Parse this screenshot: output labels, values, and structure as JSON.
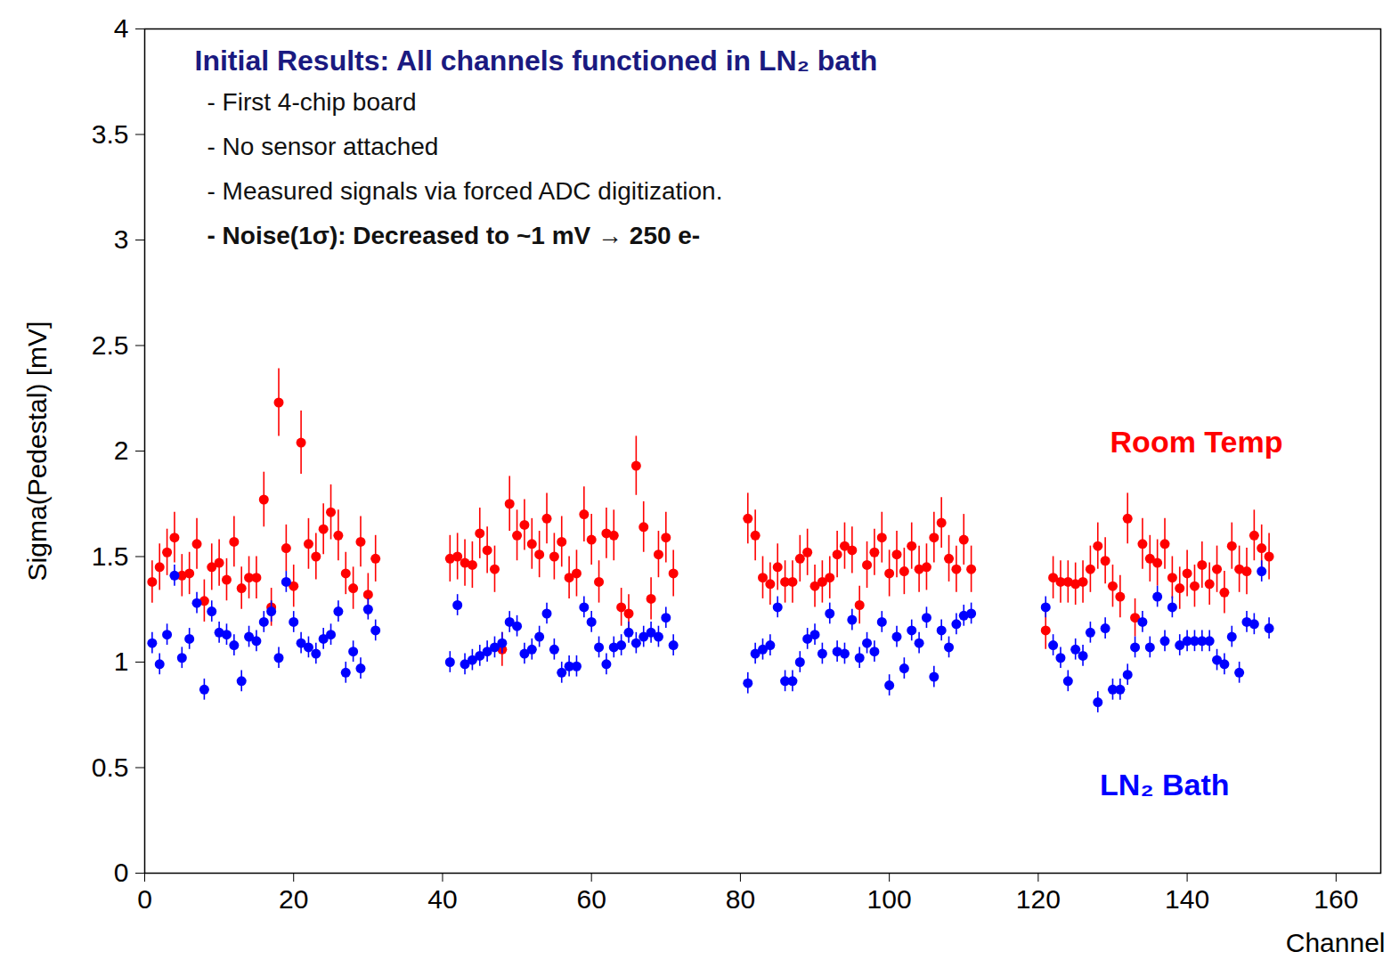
{
  "chart_data": {
    "type": "scatter",
    "x_label": "Channel",
    "y_label": "Sigma(Pedestal) [mV]",
    "xlim": [
      0,
      166
    ],
    "xticks": [
      0,
      20,
      40,
      60,
      80,
      100,
      120,
      140,
      160
    ],
    "ylim": [
      0,
      4
    ],
    "yticks": [
      0,
      0.5,
      1,
      1.5,
      2,
      2.5,
      3,
      3.5,
      4
    ],
    "grid": false,
    "legend": "right",
    "annotation": {
      "title": "Initial Results: All channels functioned in LN₂ bath",
      "lines": [
        "- First 4-chip board",
        "- No sensor attached",
        "- Measured signals via forced ADC digitization.",
        "- Noise(1σ): Decreased to ~1 mV → 250 e-"
      ]
    },
    "x": [
      1,
      2,
      3,
      4,
      5,
      6,
      7,
      8,
      9,
      10,
      11,
      12,
      13,
      14,
      15,
      16,
      17,
      18,
      19,
      20,
      21,
      22,
      23,
      24,
      25,
      26,
      27,
      28,
      29,
      30,
      31,
      41,
      42,
      43,
      44,
      45,
      46,
      47,
      48,
      49,
      50,
      51,
      52,
      53,
      54,
      55,
      56,
      57,
      58,
      59,
      60,
      61,
      62,
      63,
      64,
      65,
      66,
      67,
      68,
      69,
      70,
      71,
      81,
      82,
      83,
      84,
      85,
      86,
      87,
      88,
      89,
      90,
      91,
      92,
      93,
      94,
      95,
      96,
      97,
      98,
      99,
      100,
      101,
      102,
      103,
      104,
      105,
      106,
      107,
      108,
      109,
      110,
      111,
      121,
      122,
      123,
      124,
      125,
      126,
      127,
      128,
      129,
      130,
      131,
      132,
      133,
      134,
      135,
      136,
      137,
      138,
      139,
      140,
      141,
      142,
      143,
      144,
      145,
      146,
      147,
      148,
      149,
      150,
      151
    ],
    "series": [
      {
        "name": "Room Temp",
        "color": "#ff0000",
        "marker": "circle",
        "values": [
          1.38,
          1.45,
          1.52,
          1.59,
          1.41,
          1.42,
          1.56,
          1.29,
          1.45,
          1.47,
          1.39,
          1.57,
          1.35,
          1.4,
          1.4,
          1.77,
          1.26,
          2.23,
          1.54,
          1.36,
          2.04,
          1.56,
          1.5,
          1.63,
          1.71,
          1.6,
          1.42,
          1.35,
          1.57,
          1.32,
          1.49,
          1.49,
          1.5,
          1.47,
          1.46,
          1.61,
          1.53,
          1.44,
          1.06,
          1.75,
          1.6,
          1.65,
          1.56,
          1.51,
          1.68,
          1.5,
          1.57,
          1.4,
          1.42,
          1.7,
          1.58,
          1.38,
          1.61,
          1.6,
          1.26,
          1.23,
          1.93,
          1.64,
          1.3,
          1.51,
          1.59,
          1.42,
          1.68,
          1.6,
          1.4,
          1.37,
          1.45,
          1.38,
          1.38,
          1.49,
          1.52,
          1.36,
          1.38,
          1.4,
          1.51,
          1.55,
          1.53,
          1.27,
          1.46,
          1.52,
          1.59,
          1.42,
          1.51,
          1.43,
          1.55,
          1.44,
          1.45,
          1.59,
          1.66,
          1.49,
          1.44,
          1.58,
          1.44,
          1.15,
          1.4,
          1.38,
          1.38,
          1.37,
          1.38,
          1.44,
          1.55,
          1.48,
          1.36,
          1.31,
          1.68,
          1.21,
          1.56,
          1.49,
          1.47,
          1.56,
          1.4,
          1.35,
          1.42,
          1.36,
          1.46,
          1.37,
          1.44,
          1.33,
          1.55,
          1.44,
          1.43,
          1.6,
          1.54,
          1.5
        ],
        "errors": [
          0.1,
          0.11,
          0.11,
          0.12,
          0.1,
          0.1,
          0.12,
          0.1,
          0.11,
          0.11,
          0.1,
          0.12,
          0.1,
          0.1,
          0.1,
          0.13,
          0.09,
          0.16,
          0.11,
          0.1,
          0.15,
          0.12,
          0.11,
          0.12,
          0.13,
          0.12,
          0.1,
          0.1,
          0.12,
          0.1,
          0.11,
          0.11,
          0.11,
          0.11,
          0.11,
          0.12,
          0.11,
          0.11,
          0.08,
          0.13,
          0.12,
          0.12,
          0.12,
          0.11,
          0.12,
          0.11,
          0.12,
          0.1,
          0.11,
          0.13,
          0.12,
          0.1,
          0.12,
          0.12,
          0.09,
          0.09,
          0.14,
          0.12,
          0.1,
          0.11,
          0.12,
          0.11,
          0.12,
          0.12,
          0.1,
          0.1,
          0.11,
          0.1,
          0.1,
          0.11,
          0.11,
          0.1,
          0.1,
          0.1,
          0.11,
          0.11,
          0.11,
          0.09,
          0.11,
          0.11,
          0.12,
          0.11,
          0.11,
          0.11,
          0.11,
          0.11,
          0.11,
          0.12,
          0.12,
          0.11,
          0.11,
          0.12,
          0.11,
          0.09,
          0.1,
          0.1,
          0.1,
          0.1,
          0.1,
          0.11,
          0.11,
          0.11,
          0.1,
          0.1,
          0.12,
          0.09,
          0.12,
          0.11,
          0.11,
          0.12,
          0.1,
          0.1,
          0.11,
          0.1,
          0.11,
          0.1,
          0.11,
          0.1,
          0.11,
          0.11,
          0.11,
          0.12,
          0.11,
          0.11
        ]
      },
      {
        "name": "LN₂ Bath",
        "color": "#0000ff",
        "marker": "circle",
        "values": [
          1.09,
          0.99,
          1.13,
          1.41,
          1.02,
          1.11,
          1.28,
          0.87,
          1.24,
          1.14,
          1.13,
          1.08,
          0.91,
          1.12,
          1.1,
          1.19,
          1.24,
          1.02,
          1.38,
          1.19,
          1.09,
          1.07,
          1.04,
          1.11,
          1.13,
          1.24,
          0.95,
          1.05,
          0.97,
          1.25,
          1.15,
          1.0,
          1.27,
          0.99,
          1.01,
          1.03,
          1.05,
          1.07,
          1.09,
          1.19,
          1.17,
          1.04,
          1.06,
          1.12,
          1.23,
          1.06,
          0.95,
          0.98,
          0.98,
          1.26,
          1.19,
          1.07,
          0.99,
          1.07,
          1.08,
          1.14,
          1.09,
          1.12,
          1.14,
          1.12,
          1.21,
          1.08,
          0.9,
          1.04,
          1.06,
          1.08,
          1.26,
          0.91,
          0.91,
          1.0,
          1.11,
          1.13,
          1.04,
          1.23,
          1.05,
          1.04,
          1.2,
          1.02,
          1.09,
          1.05,
          1.19,
          0.89,
          1.12,
          0.97,
          1.15,
          1.09,
          1.21,
          0.93,
          1.15,
          1.07,
          1.18,
          1.22,
          1.23,
          1.26,
          1.08,
          1.02,
          0.91,
          1.06,
          1.03,
          1.14,
          0.81,
          1.16,
          0.87,
          0.87,
          0.94,
          1.07,
          1.19,
          1.07,
          1.31,
          1.1,
          1.26,
          1.08,
          1.1,
          1.1,
          1.1,
          1.1,
          1.01,
          0.99,
          1.12,
          0.95,
          1.19,
          1.18,
          1.43,
          1.16
        ],
        "errors": [
          0.05,
          0.05,
          0.05,
          0.05,
          0.05,
          0.05,
          0.05,
          0.05,
          0.05,
          0.05,
          0.05,
          0.05,
          0.05,
          0.05,
          0.05,
          0.05,
          0.05,
          0.05,
          0.05,
          0.05,
          0.05,
          0.05,
          0.05,
          0.05,
          0.05,
          0.05,
          0.05,
          0.05,
          0.05,
          0.05,
          0.05,
          0.05,
          0.05,
          0.05,
          0.05,
          0.05,
          0.05,
          0.05,
          0.05,
          0.05,
          0.05,
          0.05,
          0.05,
          0.05,
          0.05,
          0.05,
          0.05,
          0.05,
          0.05,
          0.05,
          0.05,
          0.05,
          0.05,
          0.05,
          0.05,
          0.05,
          0.05,
          0.05,
          0.05,
          0.05,
          0.05,
          0.05,
          0.05,
          0.05,
          0.05,
          0.05,
          0.05,
          0.05,
          0.05,
          0.05,
          0.05,
          0.05,
          0.05,
          0.05,
          0.05,
          0.05,
          0.05,
          0.05,
          0.05,
          0.05,
          0.05,
          0.05,
          0.05,
          0.05,
          0.05,
          0.05,
          0.05,
          0.05,
          0.05,
          0.05,
          0.05,
          0.05,
          0.05,
          0.05,
          0.05,
          0.05,
          0.05,
          0.05,
          0.05,
          0.05,
          0.05,
          0.05,
          0.05,
          0.05,
          0.05,
          0.05,
          0.05,
          0.05,
          0.05,
          0.05,
          0.05,
          0.05,
          0.05,
          0.05,
          0.05,
          0.05,
          0.05,
          0.05,
          0.05,
          0.05,
          0.05,
          0.05,
          0.05,
          0.05
        ]
      }
    ]
  }
}
